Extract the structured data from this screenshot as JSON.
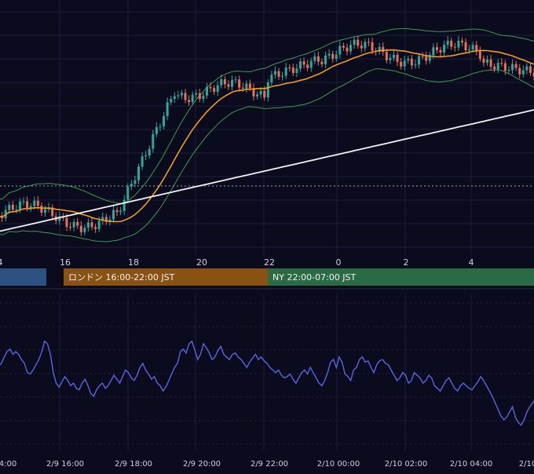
{
  "colors": {
    "background": "#0b0b1e",
    "grid": "#1c1f3a",
    "axis_text": "#d0d0e0",
    "candle_up": "#2fa89a",
    "candle_down": "#e8705a",
    "ma_short": "#f09a28",
    "ma_long": "#f2f2f2",
    "bollinger": "#3f9a4a",
    "oscillator": "#5b63e6",
    "asia_session": "#2c5282",
    "london_session": "#8a5212",
    "ny_session": "#2a6a44",
    "price_guide": "#9aa0b8"
  },
  "sessions": [
    {
      "label": "",
      "color": "#2c5282",
      "from": "2/9 13:00",
      "to": "2/9 15:00"
    },
    {
      "label": "ロンドン 16:00-22:00 JST",
      "color": "#8a5212",
      "from": "2/9 16:00",
      "to": "2/9 22:00"
    },
    {
      "label": "NY 22:00-07:00 JST",
      "color": "#2a6a44",
      "from": "2/9 22:00",
      "to": "2/10 07:00"
    }
  ],
  "chart_data": [
    {
      "type": "candlestick",
      "title": "",
      "xlabel": "",
      "ylabel": "",
      "x_axis_ticks": [
        "4",
        "16",
        "18",
        "20",
        "22",
        "0",
        "2",
        "4"
      ],
      "x_range": [
        "2/9 14:00",
        "2/10 05:52"
      ],
      "y_axis": "no price labels visible",
      "grid": true,
      "indicators": [
        "moving average (orange)",
        "long moving average (white)",
        "Bollinger Bands (green)",
        "horizontal dotted price line"
      ]
    },
    {
      "type": "line",
      "title": "",
      "xlabel": "",
      "ylabel": "",
      "x_axis_ticks": [
        "4:00",
        "2/9 16:00",
        "2/9 18:00",
        "2/9 20:00",
        "2/9 22:00",
        "2/10 00:00",
        "2/10 02:00",
        "2/10 04:00",
        "2/10"
      ],
      "x_range": [
        "2/9 14:00",
        "2/10 05:52"
      ],
      "series": [
        {
          "color": "#5b63e6",
          "values": [
            53,
            55,
            60,
            64,
            66,
            62,
            64,
            62,
            58,
            55,
            48,
            47,
            50,
            54,
            58,
            64,
            72,
            70,
            62,
            48,
            40,
            37,
            41,
            45,
            42,
            38,
            40,
            36,
            35,
            40,
            43,
            38,
            32,
            30,
            35,
            38,
            40,
            36,
            38,
            42,
            46,
            43,
            40,
            45,
            50,
            48,
            44,
            42,
            46,
            52,
            55,
            50,
            47,
            43,
            45,
            40,
            38,
            34,
            37,
            42,
            47,
            52,
            55,
            64,
            66,
            63,
            70,
            72,
            65,
            58,
            62,
            70,
            67,
            63,
            58,
            60,
            65,
            68,
            62,
            60,
            58,
            62,
            63,
            60,
            58,
            55,
            52,
            56,
            59,
            62,
            58,
            60,
            57,
            55,
            52,
            50,
            48,
            50,
            46,
            44,
            45,
            47,
            43,
            40,
            44,
            48,
            50,
            47,
            52,
            48,
            44,
            40,
            38,
            42,
            48,
            56,
            58,
            52,
            60,
            56,
            47,
            45,
            42,
            50,
            52,
            58,
            60,
            56,
            57,
            52,
            48,
            54,
            57,
            58,
            55,
            54,
            50,
            46,
            42,
            44,
            48,
            46,
            40,
            42,
            48,
            46,
            44,
            40,
            42,
            46,
            44,
            38,
            36,
            34,
            38,
            42,
            44,
            40,
            36,
            34,
            38,
            40,
            38,
            36,
            35,
            38,
            41,
            45,
            42,
            38,
            34,
            30,
            25,
            20,
            15,
            12,
            14,
            18,
            22,
            14,
            10,
            8,
            12,
            18,
            22,
            25,
            28
          ],
          "ylim": [
            0,
            100
          ]
        }
      ]
    }
  ]
}
